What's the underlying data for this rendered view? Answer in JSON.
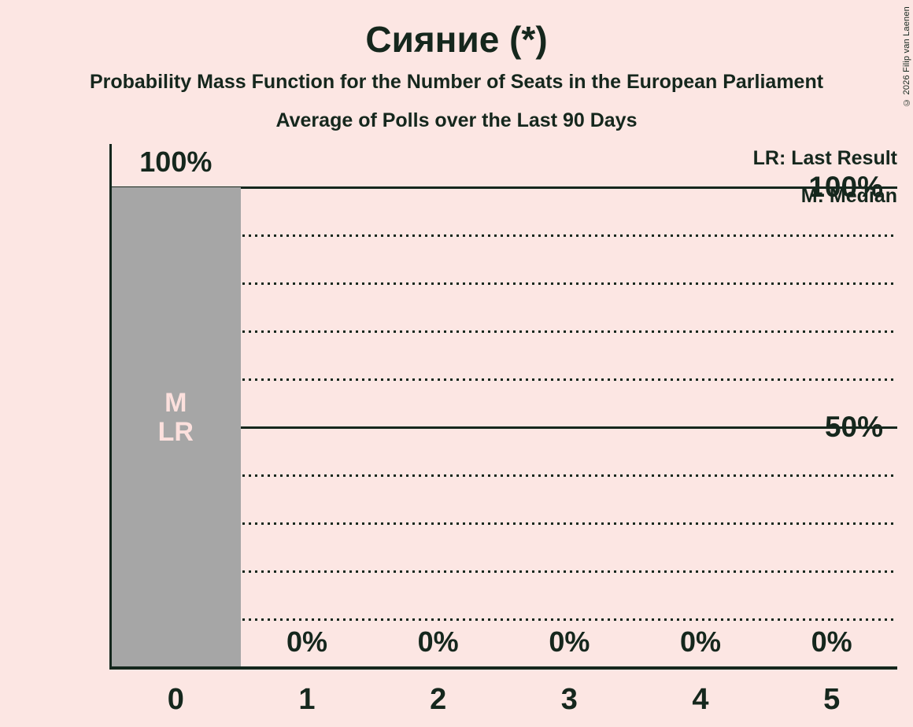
{
  "copyright": "© 2026 Filip van Laenen",
  "chart_data": {
    "type": "bar",
    "title": "Сияние (*)",
    "subtitle": "Probability Mass Function for the Number of Seats in the European Parliament",
    "subtitle2": "Average of Polls over the Last 90 Days",
    "xlabel": "",
    "ylabel": "",
    "categories": [
      "0",
      "1",
      "2",
      "3",
      "4",
      "5"
    ],
    "values": [
      100,
      0,
      0,
      0,
      0,
      0
    ],
    "value_labels": [
      "100%",
      "0%",
      "0%",
      "0%",
      "0%",
      "0%"
    ],
    "y_ticks": [
      {
        "value": 100,
        "label": "100%"
      },
      {
        "value": 50,
        "label": "50%"
      }
    ],
    "ylim": [
      0,
      100
    ],
    "solid_gridlines": [
      100,
      50
    ],
    "dotted_gridlines": [
      90,
      80,
      70,
      60,
      40,
      30,
      20,
      10
    ],
    "bar_annotations": {
      "0": [
        "M",
        "LR"
      ]
    },
    "legend": [
      "LR: Last Result",
      "M: Median"
    ],
    "legend_position": "top-right",
    "grid": "horizontal-dotted"
  },
  "colors": {
    "background": "#fce6e3",
    "bar": "#a6a6a6",
    "text": "#15271d",
    "bar_label": "#fce0dd"
  }
}
